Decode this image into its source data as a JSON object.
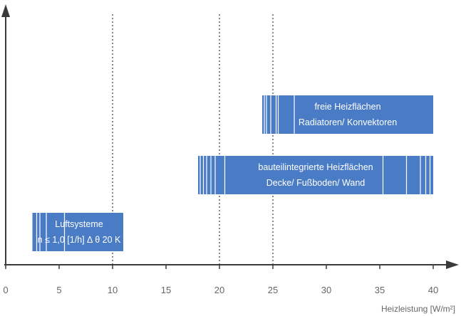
{
  "chart_data": {
    "type": "bar",
    "orientation": "horizontal-range",
    "xlabel": "Heizleistung [W/m²]",
    "xlim": [
      0,
      42
    ],
    "xticks": [
      0,
      5,
      10,
      15,
      20,
      25,
      30,
      35,
      40
    ],
    "reference_lines_x": [
      10,
      20,
      25
    ],
    "grid": false,
    "bar_color": "#4a7cc6",
    "axis_color": "#3a3a3a",
    "ranges": [
      {
        "lines": [
          "freie Heizflächen",
          "Radiatoren/ Konvektoren"
        ],
        "start": 24,
        "end": 40,
        "stripes": [
          24.2,
          24.4,
          24.8,
          25.3,
          25.5,
          27.0
        ]
      },
      {
        "lines": [
          "bauteilintegrierte Heizflächen",
          "Decke/ Fußboden/ Wand"
        ],
        "start": 18,
        "end": 40,
        "stripes": [
          18.2,
          18.5,
          18.8,
          19.2,
          19.6,
          20.5,
          35.3,
          37.5,
          38.8,
          39.3,
          39.7
        ]
      },
      {
        "lines": [
          "Luftsysteme",
          "n ≤ 1,0 [1/h]   Δ θ 20 K"
        ],
        "start": 2.5,
        "end": 11,
        "stripes": [
          2.9,
          3.2,
          3.8,
          5.5
        ]
      }
    ]
  }
}
